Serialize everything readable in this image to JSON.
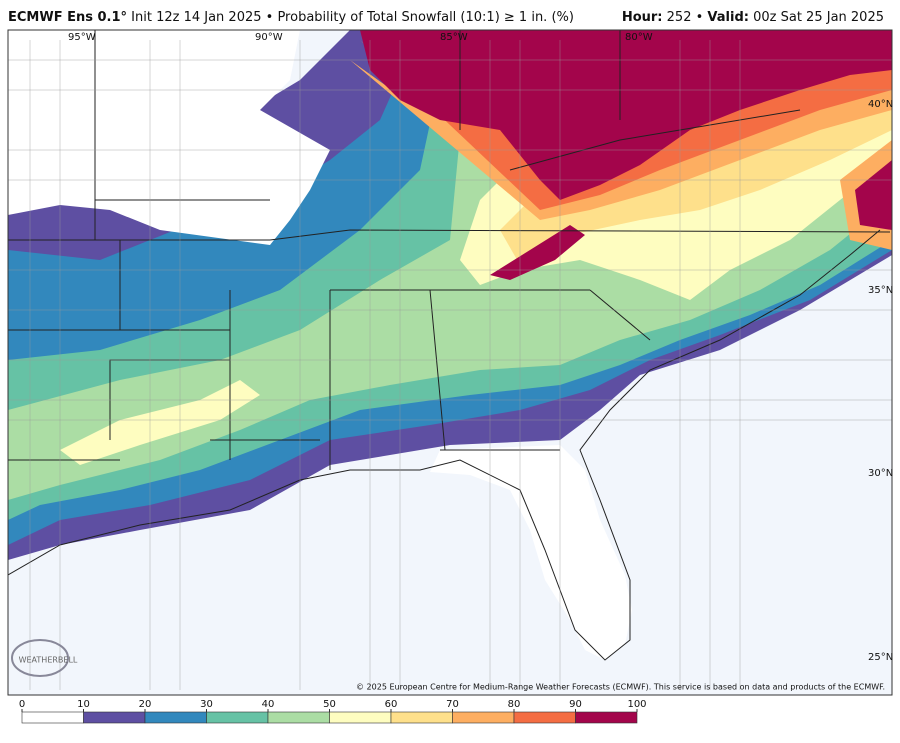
{
  "header": {
    "model": "ECMWF Ens 0.1°",
    "subtitle": "Init 12z 14 Jan 2025 • Probability of Total Snowfall (10:1) ≥ 1 in. (%)",
    "hour_label": "Hour:",
    "hour": "252 •",
    "valid_label": "Valid:",
    "valid": "00z Sat 25 Jan 2025"
  },
  "map": {
    "lat_labels": [
      "40°N",
      "35°N",
      "30°N",
      "25°N"
    ],
    "lon_labels": [
      "95°W",
      "90°W",
      "85°W",
      "80°W"
    ],
    "logo": "WEATHERBELL",
    "credit": "© 2025 European Centre for Medium-Range Weather Forecasts (ECMWF). This service is based on data and products of the ECMWF."
  },
  "colorbar": {
    "ticks": [
      0,
      10,
      20,
      30,
      40,
      50,
      60,
      70,
      80,
      90,
      100
    ],
    "colors": [
      "#ffffff",
      "#5e4fa2",
      "#3288bd",
      "#66c2a5",
      "#abdda4",
      "#fefdc0",
      "#fee08b",
      "#fdae61",
      "#f46d43",
      "#a3054b"
    ]
  }
}
